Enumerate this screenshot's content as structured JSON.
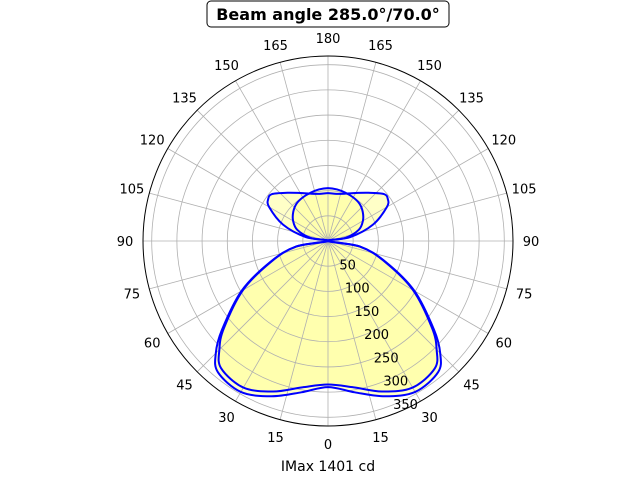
{
  "chart_data": {
    "type": "polar",
    "title": "Beam angle 285.0°/70.0°",
    "xlabel": "IMax 1401 cd",
    "angle_tick_labels": [
      "0",
      "15",
      "30",
      "45",
      "60",
      "75",
      "90",
      "105",
      "120",
      "135",
      "150",
      "165",
      "180",
      "165",
      "150",
      "135",
      "120",
      "105",
      "90",
      "75",
      "60",
      "45",
      "30",
      "15"
    ],
    "radial_tick_labels": [
      "50",
      "100",
      "150",
      "200",
      "250",
      "300",
      "350"
    ],
    "rlim": [
      0,
      350
    ],
    "grid": true,
    "series": [
      {
        "color": "#0000ff",
        "fill": "#ffff99",
        "angles_deg": [
          0,
          10,
          20,
          30,
          40,
          45,
          50,
          60,
          70,
          80,
          90,
          100,
          110,
          120,
          125,
          130,
          140,
          150,
          160,
          170,
          180,
          190,
          200,
          210,
          220,
          230,
          235,
          240,
          250,
          260,
          270,
          280,
          290,
          300,
          310,
          315,
          320,
          330,
          340,
          350
        ],
        "values": [
          285,
          295,
          318,
          336,
          330,
          305,
          270,
          195,
          120,
          65,
          0,
          45,
          95,
          135,
          145,
          145,
          125,
          110,
          100,
          95,
          95,
          95,
          100,
          110,
          125,
          145,
          145,
          135,
          95,
          45,
          0,
          65,
          120,
          195,
          270,
          305,
          330,
          336,
          318,
          295
        ]
      },
      {
        "color": "#0000ff",
        "fill": "#ffff99",
        "angles_deg": [
          0,
          10,
          20,
          30,
          40,
          45,
          50,
          60,
          70,
          80,
          90,
          100,
          110,
          120,
          130,
          140,
          150,
          160,
          170,
          180,
          190,
          200,
          210,
          220,
          230,
          240,
          250,
          260,
          270,
          280,
          290,
          300,
          310,
          315,
          320,
          330,
          340,
          350
        ],
        "values": [
          290,
          305,
          328,
          346,
          340,
          315,
          275,
          198,
          122,
          65,
          0,
          35,
          65,
          80,
          90,
          97,
          100,
          102,
          104,
          105,
          104,
          102,
          100,
          97,
          90,
          80,
          65,
          35,
          0,
          65,
          122,
          198,
          275,
          315,
          340,
          346,
          328,
          305
        ]
      }
    ]
  }
}
